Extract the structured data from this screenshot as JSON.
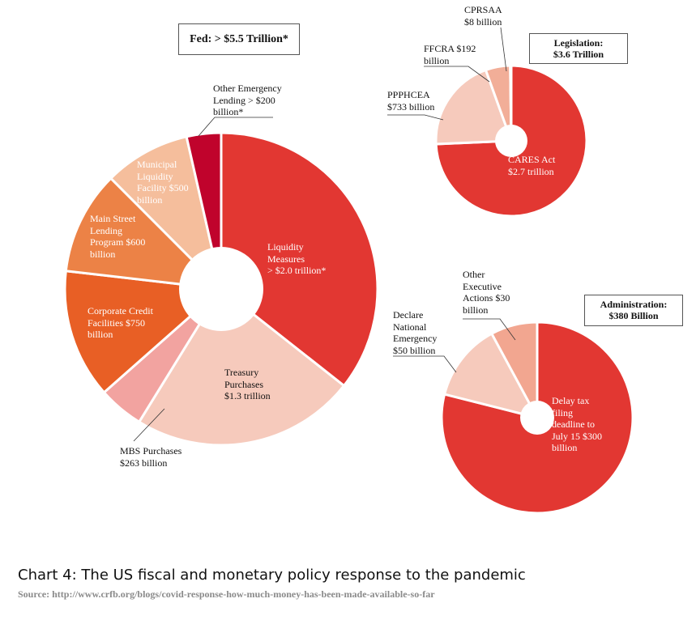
{
  "chart_data": [
    {
      "type": "pie",
      "title": "Fed: > $5.5 Trillion*",
      "slices": [
        {
          "name": "Liquidity Measures",
          "value_text": "> $2.0 trillion*",
          "value": 2000,
          "label_lines": [
            "Liquidity",
            "Measures",
            "> $2.0 trillion*"
          ],
          "color": "#E23732"
        },
        {
          "name": "Treasury Purchases",
          "value_text": "$1.3 trillion",
          "value": 1300,
          "label_lines": [
            "Treasury",
            "Purchases",
            "$1.3 trillion"
          ],
          "color": "#F6CABC"
        },
        {
          "name": "MBS Purchases",
          "value_text": "$263 billion",
          "value": 263,
          "label_lines": [
            "MBS Purchases",
            "$263 billion"
          ],
          "color": "#F2A3A0"
        },
        {
          "name": "Corporate Credit Facilities",
          "value_text": "$750 billion",
          "value": 750,
          "label_lines": [
            "Corporate Credit",
            "Facilities $750",
            "billion"
          ],
          "color": "#E85F25"
        },
        {
          "name": "Main Street Lending Program",
          "value_text": "$600 billion",
          "value": 600,
          "label_lines": [
            "Main Street",
            "Lending",
            "Program $600",
            "billion"
          ],
          "color": "#EC8246"
        },
        {
          "name": "Municipal Liquidity Facility",
          "value_text": "$500 billion",
          "value": 500,
          "label_lines": [
            "Municipal",
            "Liquidity",
            "Facility $500",
            "billion"
          ],
          "color": "#F5BE9C"
        },
        {
          "name": "Other Emergency Lending",
          "value_text": "> $200 billion*",
          "value": 200,
          "label_lines": [
            "Other Emergency",
            "Lending > $200",
            "billion*"
          ],
          "color": "#C0032C"
        }
      ]
    },
    {
      "type": "pie",
      "title": "Legislation: $3.6 Trillion",
      "title_lines": [
        "Legislation:",
        "$3.6 Trillion"
      ],
      "slices": [
        {
          "name": "CARES Act",
          "value_text": "$2.7 trillion",
          "value": 2700,
          "label_lines": [
            "CARES Act",
            "$2.7 trillion"
          ],
          "color": "#E23732"
        },
        {
          "name": "PPPHCEA",
          "value_text": "$733 billion",
          "value": 733,
          "label_lines": [
            "PPPHCEA",
            "$733 billion"
          ],
          "color": "#F6CABC"
        },
        {
          "name": "FFCRA",
          "value_text": "$192 billion",
          "value": 192,
          "label_lines": [
            "FFCRA $192",
            "billion"
          ],
          "color": "#F2AE98"
        },
        {
          "name": "CPRSAA",
          "value_text": "$8 billion",
          "value": 8,
          "label_lines": [
            "CPRSAA",
            "$8 billion"
          ],
          "color": "#EC8246"
        }
      ]
    },
    {
      "type": "pie",
      "title": "Administration: $380 Billion",
      "title_lines": [
        "Administration:",
        "$380 Billion"
      ],
      "slices": [
        {
          "name": "Delay tax filing deadline to July 15",
          "value_text": "$300 billion",
          "value": 300,
          "label_lines": [
            "Delay tax",
            "filing",
            "deadline to",
            "July 15 $300",
            "billion"
          ],
          "color": "#E23732"
        },
        {
          "name": "Declare National Emergency",
          "value_text": "$50 billion",
          "value": 50,
          "label_lines": [
            "Declare",
            "National",
            "Emergency",
            "$50 billion"
          ],
          "color": "#F6CABC"
        },
        {
          "name": "Other Executive Actions",
          "value_text": "$30 billion",
          "value": 30,
          "label_lines": [
            "Other",
            "Executive",
            "Actions $30",
            "billion"
          ],
          "color": "#F2A690"
        }
      ]
    }
  ],
  "caption": "Chart 4: The US fiscal and monetary policy response to the pandemic",
  "source": "Source: http://www.crfb.org/blogs/covid-response-how-much-money-has-been-made-available-so-far"
}
